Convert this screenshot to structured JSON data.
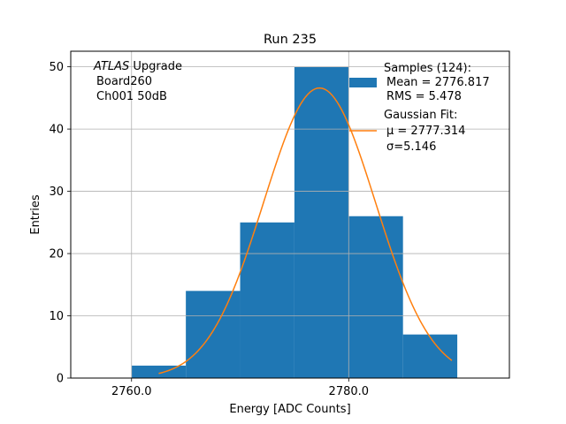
{
  "chart_data": {
    "type": "bar",
    "title": "Run 235",
    "xlabel": "Energy [ADC Counts]",
    "ylabel": "Entries",
    "xlim": [
      2754.4,
      2794.8
    ],
    "ylim": [
      0,
      52.5
    ],
    "grid": true,
    "xticks": [
      2760,
      2780
    ],
    "xtick_labels": [
      "2760.0",
      "2780.0"
    ],
    "yticks": [
      0,
      10,
      20,
      30,
      40,
      50
    ],
    "ytick_labels": [
      "0",
      "10",
      "20",
      "30",
      "40",
      "50"
    ],
    "annotation": {
      "italic": "ATLAS",
      "line1_rest": " Upgrade",
      "line2": "Board260",
      "line3": "Ch001 50dB"
    },
    "histogram": {
      "name": "Samples (124):",
      "color": "#1f77b4",
      "bins": [
        {
          "x0": 2760,
          "x1": 2765,
          "count": 2
        },
        {
          "x0": 2765,
          "x1": 2770,
          "count": 14
        },
        {
          "x0": 2770,
          "x1": 2775,
          "count": 25
        },
        {
          "x0": 2775,
          "x1": 2780,
          "count": 50
        },
        {
          "x0": 2780,
          "x1": 2785,
          "count": 26
        },
        {
          "x0": 2785,
          "x1": 2790,
          "count": 7
        }
      ]
    },
    "fit": {
      "name": "Gaussian Fit:",
      "color": "#ff7f0e",
      "mu": 2777.314,
      "sigma": 5.146,
      "peak": 46.6,
      "x_range": [
        2762.5,
        2789.5
      ]
    },
    "legend": {
      "position": "top-right",
      "samples_lines": [
        "Samples (124):",
        "Mean = 2776.817",
        "RMS = 5.478"
      ],
      "fit_lines": [
        "Gaussian Fit:",
        "μ = 2777.314",
        "σ=5.146"
      ]
    }
  }
}
